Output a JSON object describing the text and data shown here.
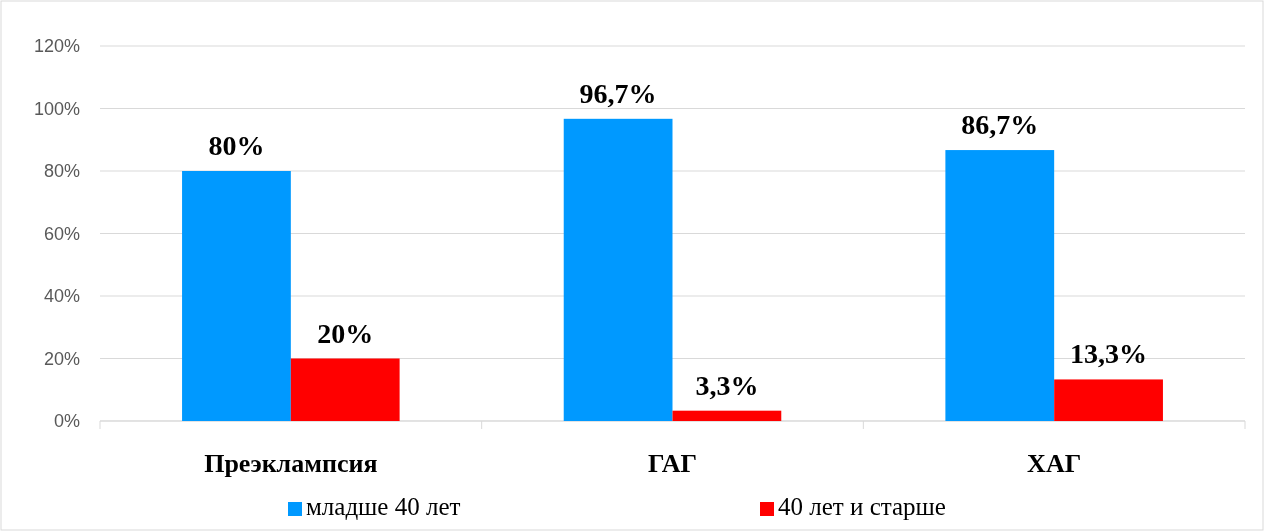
{
  "chart_data": {
    "type": "bar",
    "categories": [
      "Преэклампсия",
      "ГАГ",
      "ХАГ"
    ],
    "series": [
      {
        "name": "младше 40 лет",
        "color": "#0099ff",
        "values": [
          80,
          96.7,
          86.7
        ],
        "value_labels": [
          "80%",
          "96,7%",
          "86,7%"
        ]
      },
      {
        "name": "40 лет и старше",
        "color": "#ff0000",
        "values": [
          20,
          3.3,
          13.3
        ],
        "value_labels": [
          "20%",
          "3,3%",
          "13,3%"
        ]
      }
    ],
    "ylim": [
      0,
      120
    ],
    "yticks": [
      {
        "value": 0,
        "label": "0%"
      },
      {
        "value": 20,
        "label": "20%"
      },
      {
        "value": 40,
        "label": "40%"
      },
      {
        "value": 60,
        "label": "60%"
      },
      {
        "value": 80,
        "label": "80%"
      },
      {
        "value": 100,
        "label": "100%"
      },
      {
        "value": 120,
        "label": "120%"
      }
    ],
    "grid": "y",
    "legend": "bottom"
  }
}
